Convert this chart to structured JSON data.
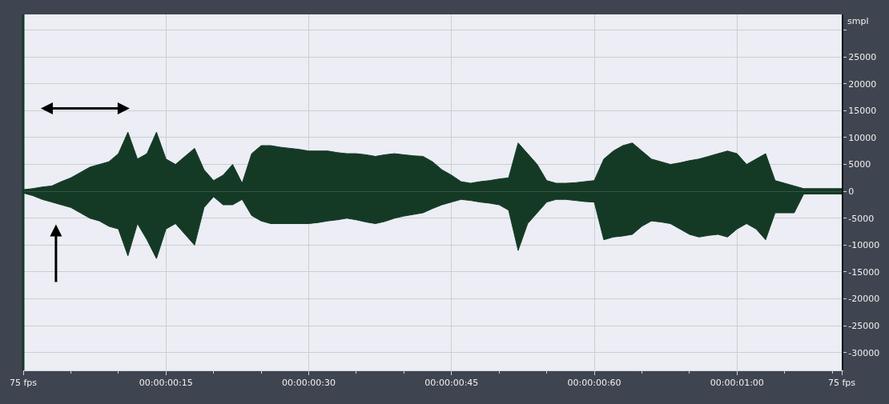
{
  "chart_data": {
    "type": "area",
    "ylabel": "smpl",
    "categories": [
      "75 fps",
      null,
      null,
      null,
      null,
      null,
      null,
      null,
      null,
      null,
      null,
      null,
      null,
      null,
      null,
      "00:00:00:15",
      null,
      null,
      null,
      null,
      null,
      null,
      null,
      null,
      null,
      null,
      null,
      null,
      null,
      null,
      "00:00:00:30",
      null,
      null,
      null,
      null,
      null,
      null,
      null,
      null,
      null,
      null,
      null,
      null,
      null,
      null,
      "00:00:00:45",
      null,
      null,
      null,
      null,
      null,
      null,
      null,
      null,
      null,
      null,
      null,
      null,
      null,
      null,
      "00:00:00:60",
      null,
      null,
      null,
      null,
      null,
      null,
      null,
      null,
      null,
      null,
      null,
      null,
      null,
      null,
      "00:00:01:00",
      null,
      null,
      null,
      null,
      null,
      null,
      null,
      null,
      null,
      null,
      "75 fps"
    ],
    "series": [
      {
        "color": "#143a26",
        "values": [
          300,
          500,
          800,
          1000,
          1800,
          2500,
          3500,
          4500,
          5000,
          5500,
          7000,
          11000,
          6000,
          7000,
          11000,
          6000,
          5000,
          6500,
          8000,
          4000,
          2000,
          3000,
          5000,
          1500,
          7000,
          8500,
          8500,
          8200,
          8000,
          7800,
          7500,
          7500,
          7500,
          7200,
          7000,
          7000,
          6800,
          6500,
          6800,
          7000,
          6800,
          6600,
          6500,
          5500,
          4000,
          3000,
          1800,
          1500,
          1800,
          2000,
          2300,
          2500,
          9000,
          7000,
          5000,
          2000,
          1500,
          1500,
          1600,
          1800,
          2000,
          6000,
          7500,
          8500,
          9000,
          7500,
          6000,
          5500,
          5000,
          5300,
          5700,
          6000,
          6500,
          7000,
          7500,
          7000,
          5000,
          6000,
          7000,
          2000,
          1500,
          1000,
          500,
          500,
          500,
          500,
          500
        ]
      },
      {
        "color": "#143a26",
        "values": [
          -300,
          -800,
          -1500,
          -2000,
          -2500,
          -3000,
          -4000,
          -5000,
          -5500,
          -6500,
          -7000,
          -12000,
          -6000,
          -9000,
          -12500,
          -7000,
          -6000,
          -8000,
          -10000,
          -3000,
          -1000,
          -2500,
          -2500,
          -1500,
          -4500,
          -5500,
          -6000,
          -6000,
          -6000,
          -6000,
          -6000,
          -5800,
          -5500,
          -5300,
          -5000,
          -5300,
          -5700,
          -6000,
          -5600,
          -5000,
          -4600,
          -4300,
          -4000,
          -3200,
          -2500,
          -2000,
          -1500,
          -1700,
          -2000,
          -2200,
          -2500,
          -3500,
          -11000,
          -6000,
          -4000,
          -2000,
          -1500,
          -1500,
          -1700,
          -1900,
          -2000,
          -9000,
          -8500,
          -8300,
          -8000,
          -6500,
          -5500,
          -5700,
          -6000,
          -7000,
          -8000,
          -8500,
          -8200,
          -8000,
          -8500,
          -7000,
          -6000,
          -7000,
          -9000,
          -4000,
          -4000,
          -4000,
          -500,
          -500,
          -500,
          -500,
          -500
        ]
      }
    ],
    "ylim": [
      -33300,
      32900
    ],
    "yticks": [
      {
        "value": 30000,
        "label": null
      },
      25000,
      20000,
      15000,
      10000,
      5000,
      0,
      -5000,
      -10000,
      -15000,
      -20000,
      -25000,
      -30000
    ],
    "grid": true
  }
}
